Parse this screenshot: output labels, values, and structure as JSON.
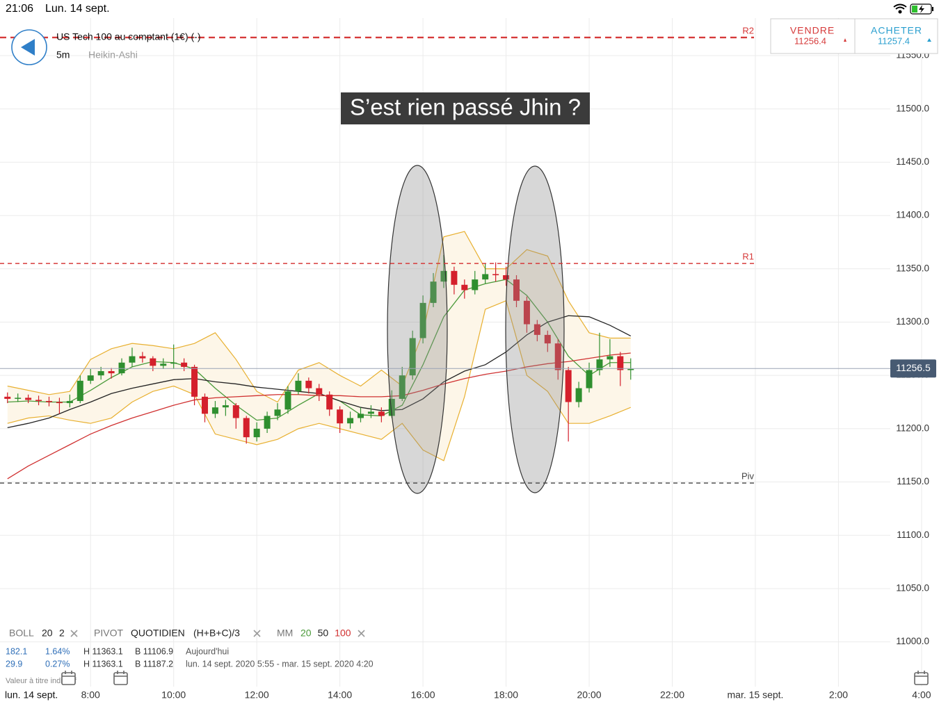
{
  "status_bar": {
    "time": "21:06",
    "date": "Lun. 14 sept."
  },
  "header": {
    "instrument": "US Tech 100 au comptant (1€) (-)",
    "interval": "5m",
    "chart_style": "Heikin-Ashi"
  },
  "quotes": {
    "sell_label": "VENDRE",
    "sell_price": 11256.4,
    "buy_label": "ACHETER",
    "buy_price": 11257.4
  },
  "chart_data": {
    "type": "candlestick",
    "annotation": "S’est rien passé Jhin ?",
    "start_date_label": "lun. 14 sept.",
    "xlim": [
      5.82,
      28.42
    ],
    "xticks": [
      {
        "value": 8,
        "label": "8:00"
      },
      {
        "value": 10,
        "label": "10:00"
      },
      {
        "value": 12,
        "label": "12:00"
      },
      {
        "value": 14,
        "label": "14:00"
      },
      {
        "value": 16,
        "label": "16:00"
      },
      {
        "value": 18,
        "label": "18:00"
      },
      {
        "value": 20,
        "label": "20:00"
      },
      {
        "value": 22,
        "label": "22:00"
      },
      {
        "value": 24,
        "label": "mar. 15 sept."
      },
      {
        "value": 26,
        "label": "2:00"
      },
      {
        "value": 28,
        "label": "4:00"
      }
    ],
    "ylim": [
      10960,
      11582.6
    ],
    "yticks": [
      {
        "value": 11000,
        "label": "11000.0"
      },
      {
        "value": 11050,
        "label": "11050.0"
      },
      {
        "value": 11100,
        "label": "11100.0"
      },
      {
        "value": 11150,
        "label": "11150.0"
      },
      {
        "value": 11200,
        "label": "11200.0"
      },
      {
        "value": 11250,
        "label": "11250.0"
      },
      {
        "value": 11300,
        "label": "11300.0"
      },
      {
        "value": 11350,
        "label": "11350.0"
      },
      {
        "value": 11400,
        "label": "11400.0"
      },
      {
        "value": 11450,
        "label": "11450.0"
      },
      {
        "value": 11500,
        "label": "11500.0"
      },
      {
        "value": 11550,
        "label": "11550.0"
      }
    ],
    "grid": true,
    "up_color": "#2f8f2f",
    "down_color": "#d4202c",
    "x": [
      6.0,
      6.25,
      6.5,
      6.75,
      7.0,
      7.25,
      7.5,
      7.75,
      8.0,
      8.25,
      8.5,
      8.75,
      9.0,
      9.25,
      9.5,
      9.75,
      10.0,
      10.25,
      10.5,
      10.75,
      11.0,
      11.25,
      11.5,
      11.75,
      12.0,
      12.25,
      12.5,
      12.75,
      13.0,
      13.25,
      13.5,
      13.75,
      14.0,
      14.25,
      14.5,
      14.75,
      15.0,
      15.25,
      15.5,
      15.75,
      16.0,
      16.25,
      16.5,
      16.75,
      17.0,
      17.25,
      17.5,
      17.75,
      18.0,
      18.25,
      18.5,
      18.75,
      19.0,
      19.25,
      19.5,
      19.75,
      20.0,
      20.25,
      20.5,
      20.75,
      21.0
    ],
    "candles": [
      [
        11230,
        11234,
        11224,
        11228
      ],
      [
        11228,
        11233,
        11225,
        11229
      ],
      [
        11229,
        11232,
        11224,
        11227
      ],
      [
        11227,
        11231,
        11222,
        11226
      ],
      [
        11226,
        11230,
        11221,
        11225
      ],
      [
        11225,
        11229,
        11214,
        11224
      ],
      [
        11224,
        11232,
        11220,
        11226
      ],
      [
        11226,
        11250,
        11224,
        11245
      ],
      [
        11245,
        11256,
        11242,
        11250
      ],
      [
        11250,
        11258,
        11246,
        11254
      ],
      [
        11254,
        11257,
        11247,
        11252
      ],
      [
        11252,
        11266,
        11250,
        11262
      ],
      [
        11262,
        11276,
        11258,
        11268
      ],
      [
        11268,
        11272,
        11262,
        11266
      ],
      [
        11266,
        11268,
        11254,
        11259
      ],
      [
        11259,
        11266,
        11256,
        11261
      ],
      [
        11261,
        11279,
        11256,
        11262
      ],
      [
        11262,
        11266,
        11254,
        11258
      ],
      [
        11258,
        11260,
        11222,
        11230
      ],
      [
        11230,
        11233,
        11206,
        11214
      ],
      [
        11214,
        11226,
        11210,
        11220
      ],
      [
        11220,
        11227,
        11212,
        11222
      ],
      [
        11222,
        11224,
        11200,
        11210
      ],
      [
        11210,
        11212,
        11186,
        11192
      ],
      [
        11192,
        11206,
        11188,
        11200
      ],
      [
        11200,
        11216,
        11196,
        11212
      ],
      [
        11212,
        11224,
        11208,
        11218
      ],
      [
        11218,
        11240,
        11214,
        11235
      ],
      [
        11235,
        11252,
        11232,
        11245
      ],
      [
        11245,
        11248,
        11233,
        11238
      ],
      [
        11238,
        11242,
        11226,
        11232
      ],
      [
        11232,
        11235,
        11212,
        11218
      ],
      [
        11218,
        11221,
        11196,
        11205
      ],
      [
        11205,
        11216,
        11200,
        11210
      ],
      [
        11210,
        11220,
        11206,
        11214
      ],
      [
        11214,
        11222,
        11210,
        11216
      ],
      [
        11216,
        11220,
        11206,
        11212
      ],
      [
        11212,
        11236,
        11210,
        11228
      ],
      [
        11228,
        11258,
        11226,
        11250
      ],
      [
        11250,
        11292,
        11246,
        11285
      ],
      [
        11285,
        11325,
        11280,
        11318
      ],
      [
        11318,
        11346,
        11314,
        11338
      ],
      [
        11338,
        11363,
        11332,
        11348
      ],
      [
        11348,
        11352,
        11326,
        11335
      ],
      [
        11335,
        11340,
        11322,
        11330
      ],
      [
        11330,
        11348,
        11326,
        11340
      ],
      [
        11340,
        11355,
        11336,
        11345
      ],
      [
        11345,
        11356,
        11338,
        11344
      ],
      [
        11344,
        11352,
        11334,
        11340
      ],
      [
        11340,
        11344,
        11314,
        11320
      ],
      [
        11320,
        11324,
        11290,
        11298
      ],
      [
        11298,
        11302,
        11282,
        11288
      ],
      [
        11288,
        11292,
        11272,
        11280
      ],
      [
        11280,
        11284,
        11246,
        11255
      ],
      [
        11255,
        11258,
        11188,
        11225
      ],
      [
        11225,
        11244,
        11220,
        11238
      ],
      [
        11238,
        11262,
        11234,
        11255
      ],
      [
        11255,
        11290,
        11250,
        11265
      ],
      [
        11265,
        11284,
        11258,
        11268
      ],
      [
        11268,
        11272,
        11240,
        11255
      ],
      [
        11255,
        11266,
        11246,
        11256
      ]
    ],
    "indicator_x": [
      6.0,
      6.5,
      7.0,
      7.5,
      8.0,
      8.5,
      9.0,
      9.5,
      10.0,
      10.5,
      11.0,
      11.5,
      12.0,
      12.5,
      13.0,
      13.5,
      14.0,
      14.5,
      15.0,
      15.5,
      16.0,
      16.5,
      17.0,
      17.5,
      18.0,
      18.5,
      19.0,
      19.5,
      20.0,
      20.5,
      21.0
    ],
    "bollinger": {
      "color": "#e8b030",
      "fill": "#fdf6e8",
      "upper": [
        11240,
        11236,
        11232,
        11235,
        11265,
        11275,
        11280,
        11278,
        11275,
        11280,
        11290,
        11265,
        11235,
        11225,
        11255,
        11262,
        11250,
        11240,
        11255,
        11240,
        11290,
        11380,
        11385,
        11350,
        11350,
        11368,
        11362,
        11320,
        11290,
        11285,
        11285
      ],
      "lower": [
        11205,
        11210,
        11212,
        11208,
        11205,
        11210,
        11225,
        11235,
        11240,
        11232,
        11195,
        11190,
        11185,
        11190,
        11200,
        11205,
        11200,
        11195,
        11190,
        11205,
        11180,
        11170,
        11230,
        11312,
        11320,
        11250,
        11235,
        11205,
        11205,
        11212,
        11220
      ]
    },
    "moving_averages": [
      {
        "period": "20",
        "color": "#4a9a3a",
        "values": [
          11225,
          11226,
          11225,
          11225,
          11236,
          11248,
          11258,
          11263,
          11262,
          11256,
          11238,
          11222,
          11208,
          11210,
          11222,
          11233,
          11226,
          11213,
          11212,
          11222,
          11260,
          11305,
          11330,
          11336,
          11340,
          11325,
          11300,
          11268,
          11250,
          11262,
          11262
        ]
      },
      {
        "period": "50",
        "color": "#222222",
        "values": [
          11201,
          11205,
          11210,
          11218,
          11225,
          11233,
          11238,
          11242,
          11246,
          11247,
          11244,
          11242,
          11239,
          11237,
          11235,
          11233,
          11226,
          11220,
          11217,
          11218,
          11228,
          11244,
          11254,
          11260,
          11272,
          11288,
          11300,
          11306,
          11305,
          11297,
          11287
        ]
      },
      {
        "period": "100",
        "color": "#d03030",
        "values": [
          11153,
          11165,
          11175,
          11185,
          11195,
          11203,
          11210,
          11216,
          11222,
          11227,
          11229,
          11230,
          11231,
          11232,
          11232,
          11231,
          11231,
          11230,
          11230,
          11231,
          11236,
          11242,
          11247,
          11251,
          11254,
          11258,
          11261,
          11263,
          11266,
          11269,
          11271
        ]
      }
    ],
    "pivot_levels": [
      {
        "label": "R2",
        "value": 11567,
        "color": "#d63a3a"
      },
      {
        "label": "R1",
        "value": 11355,
        "color": "#d63a3a"
      },
      {
        "label": "Piv",
        "value": 11149,
        "color": "#444444"
      }
    ],
    "current_price": 11256.5
  },
  "indicator_legend": {
    "boll": {
      "name": "BOLL",
      "period": "20",
      "deviation": "2"
    },
    "pivot": {
      "name": "PIVOT",
      "frequency": "QUOTIDIEN",
      "formula": "(H+B+C)/3"
    },
    "mm": {
      "name": "MM"
    }
  },
  "stats": [
    {
      "change": 182.1,
      "percent": "1.64%",
      "high": "H 11363.1",
      "low": "B 11106.9",
      "period": "Aujourd'hui"
    },
    {
      "change": 29.9,
      "percent": "0.27%",
      "high": "H 11363.1",
      "low": "B 11187.2",
      "period": "lun. 14 sept. 2020 5:55 - mar. 15 sept. 2020 4:20"
    }
  ],
  "disclaimer": "Valeur à titre indicatif"
}
